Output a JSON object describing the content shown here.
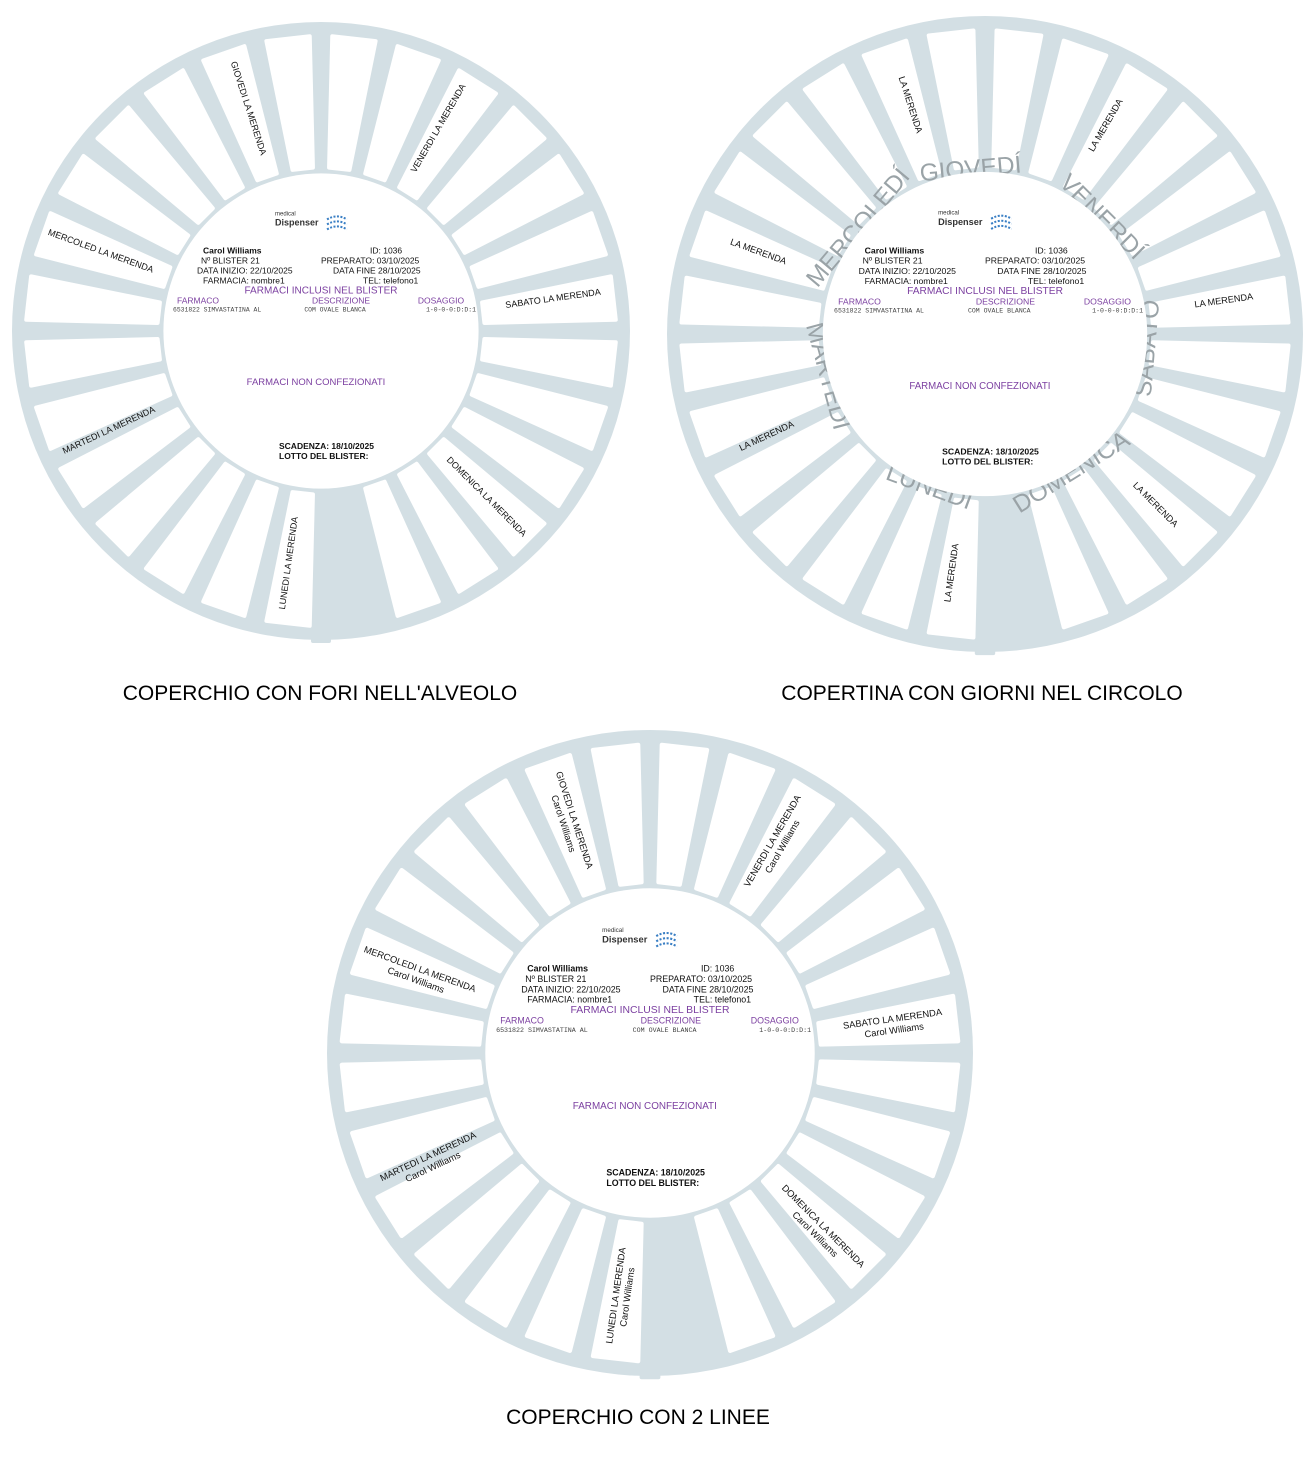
{
  "colors": {
    "ring": "#d3dfe4",
    "day_text": "#9aa3a7",
    "purple": "#7b3fa0",
    "logo_blue": "#3a7fc4"
  },
  "logo": {
    "small": "medical",
    "big": "Dispenser"
  },
  "info": {
    "name": "Carol Williams",
    "id_label": "ID:",
    "id_value": "1036",
    "blister_label": "Nº BLISTER",
    "blister_value": "21",
    "prep_label": "PREPARATO:",
    "prep_value": "03/10/2025",
    "start_label": "DATA INIZIO:",
    "start_value": "22/10/2025",
    "end_label": "DATA FINE",
    "end_value": "28/10/2025",
    "pharmacy_label": "FARMACIA:",
    "pharmacy_value": "nombre1",
    "tel_label": "TEL:",
    "tel_value": "telefono1",
    "included_title": "FARMACI INCLUSI NEL BLISTER",
    "col_drug": "FARMACO",
    "col_desc": "DESCRIZIONE",
    "col_dose": "DOSAGGIO",
    "row_code": "6531822",
    "row_drug": "SIMVASTATINA  AL",
    "row_desc": "COM OVALE BLANCA",
    "row_dose": "1-0-0-0:D:D:1",
    "not_packaged": "FARMACI NON CONFEZIONATI",
    "expiry_label": "SCADENZA:",
    "expiry_value": "18/10/2025",
    "lot_label": "LOTTO DEL BLISTER:"
  },
  "discs": [
    {
      "caption": "COPERCHIO CON FORI NELL'ALVEOLO",
      "slot_labels": [
        "GIOVEDI LA MERENDA",
        "VENERDI LA MERENDA",
        "SABATO LA MERENDA",
        "DOMENICA LA MERENDA",
        "LUNEDI LA MERENDA",
        "MARTEDI LA MERENDA",
        "MERCOLED LA MERENDA"
      ]
    },
    {
      "caption": "COPERTINA CON GIORNI NEL CIRCOLO",
      "slot_labels": [
        "LA MERENDA",
        "LA MERENDA",
        "LA MERENDA",
        "LA MERENDA",
        "LA MERENDA",
        "LA MERENDA",
        "LA MERENDA"
      ],
      "day_names": [
        "GIOVEDÍ",
        "VENERDÍ",
        "SABATO",
        "DOMENICA",
        "LUNEDÍ",
        "MARTEDÍ",
        "MERCOLEDÍ"
      ]
    },
    {
      "caption": "COPERCHIO CON 2 LINEE",
      "slot_labels": [
        "GIOVEDI LA MERENDA",
        "VENERDI LA MERENDA",
        "SABATO LA MERENDA",
        "DOMENICA LA MERENDA",
        "LUNEDI LA MERENDA",
        "MARTEDI LA MERENDA",
        "MERCOLEDI LA MERENDA"
      ],
      "second_line": "Carol Williams"
    }
  ]
}
